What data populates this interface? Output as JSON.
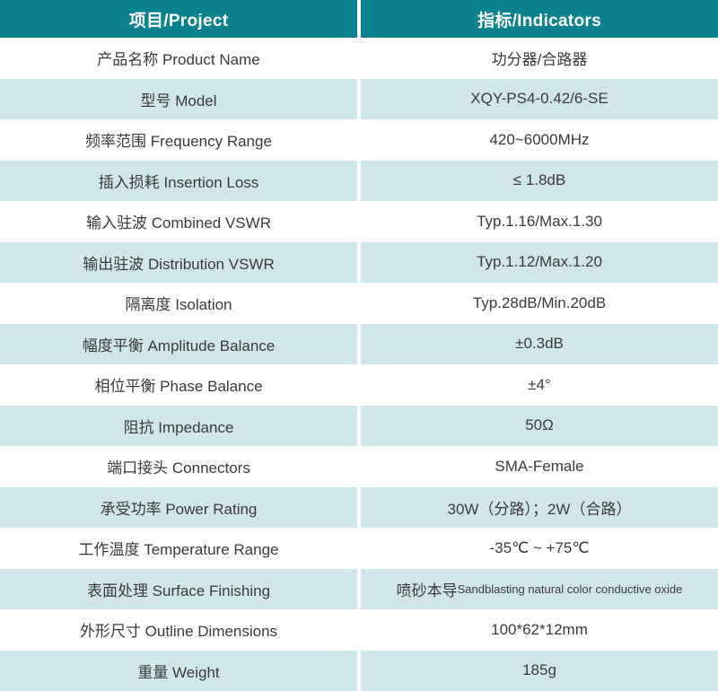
{
  "table": {
    "header": {
      "project": "项目/Project",
      "indicators": "指标/Indicators"
    },
    "rows": [
      {
        "label": "产品名称 Product Name",
        "value": "功分器/合路器"
      },
      {
        "label": "型号 Model",
        "value": "XQY-PS4-0.42/6-SE"
      },
      {
        "label": "频率范围 Frequency Range",
        "value": "420~6000MHz"
      },
      {
        "label": "插入损耗 Insertion Loss",
        "value": "≤ 1.8dB"
      },
      {
        "label": "输入驻波 Combined VSWR",
        "value": "Typ.1.16/Max.1.30"
      },
      {
        "label": "输出驻波 Distribution VSWR",
        "value": "Typ.1.12/Max.1.20"
      },
      {
        "label": "隔离度 Isolation",
        "value": "Typ.28dB/Min.20dB"
      },
      {
        "label": "幅度平衡 Amplitude Balance",
        "value": "±0.3dB"
      },
      {
        "label": "相位平衡 Phase Balance",
        "value": "±4°"
      },
      {
        "label": "阻抗 Impedance",
        "value": "50Ω"
      },
      {
        "label": "端口接头 Connectors",
        "value": "SMA-Female"
      },
      {
        "label": "承受功率 Power Rating",
        "value": "30W（分路）；2W（合路）"
      },
      {
        "label": "工作温度 Temperature Range",
        "value": "-35℃ ~ +75℃"
      },
      {
        "label": "表面处理 Surface Finishing",
        "value_cn": "喷砂本导",
        "value_en": "Sandblasting natural color conductive oxide"
      },
      {
        "label": "外形尺寸 Outline Dimensions",
        "value": "100*62*12mm"
      },
      {
        "label": "重量 Weight",
        "value": "185g"
      }
    ],
    "colors": {
      "header_bg": "#0a838e",
      "header_text": "#ffffff",
      "row_bg": "#ffffff",
      "row_alt_bg": "#cfe6ea",
      "text": "#3a3a3a"
    }
  }
}
